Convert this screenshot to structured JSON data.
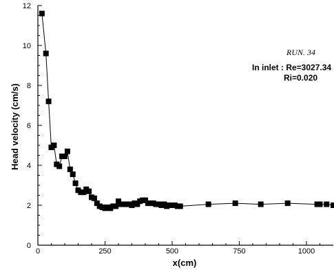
{
  "chart_data": {
    "type": "scatter",
    "xlabel": "x(cm)",
    "ylabel": "Head velocity  (cm/s)",
    "xlim": [
      0,
      1100
    ],
    "ylim": [
      0,
      12
    ],
    "xticks": [
      0,
      250,
      500,
      750,
      1000
    ],
    "yticks": [
      0,
      2,
      4,
      6,
      8,
      10,
      12
    ],
    "x_tick_labels": [
      "0",
      "250",
      "500",
      "750",
      "1000"
    ],
    "y_tick_labels": [
      "0",
      "2",
      "4",
      "6",
      "8",
      "10",
      "12"
    ],
    "grid": false,
    "annotations": {
      "run": "RUN. 34",
      "inlet": "In inlet : Re=3027.34",
      "ri": "Ri=0.020"
    },
    "series": [
      {
        "marker": "square",
        "line": true,
        "points": [
          [
            15,
            11.6
          ],
          [
            30,
            9.6
          ],
          [
            40,
            7.2
          ],
          [
            50,
            4.9
          ],
          [
            60,
            5.0
          ],
          [
            70,
            4.05
          ],
          [
            80,
            3.95
          ],
          [
            90,
            4.45
          ],
          [
            100,
            4.45
          ],
          [
            110,
            4.7
          ],
          [
            120,
            3.8
          ],
          [
            130,
            3.55
          ],
          [
            140,
            3.1
          ],
          [
            150,
            2.75
          ],
          [
            160,
            2.65
          ],
          [
            170,
            2.65
          ],
          [
            180,
            2.8
          ],
          [
            190,
            2.7
          ],
          [
            200,
            2.4
          ],
          [
            210,
            2.35
          ],
          [
            220,
            2.1
          ],
          [
            230,
            1.95
          ],
          [
            240,
            1.9
          ],
          [
            250,
            1.85
          ],
          [
            260,
            1.9
          ],
          [
            270,
            1.85
          ],
          [
            280,
            1.95
          ],
          [
            290,
            1.95
          ],
          [
            300,
            2.2
          ],
          [
            310,
            2.05
          ],
          [
            320,
            2.05
          ],
          [
            330,
            2.05
          ],
          [
            340,
            2.05
          ],
          [
            350,
            2.0
          ],
          [
            360,
            2.1
          ],
          [
            370,
            2.05
          ],
          [
            380,
            2.2
          ],
          [
            390,
            2.25
          ],
          [
            400,
            2.25
          ],
          [
            410,
            2.1
          ],
          [
            420,
            2.1
          ],
          [
            430,
            2.1
          ],
          [
            440,
            2.05
          ],
          [
            450,
            2.05
          ],
          [
            460,
            2.0
          ],
          [
            470,
            2.05
          ],
          [
            480,
            1.95
          ],
          [
            490,
            2.0
          ],
          [
            500,
            2.0
          ],
          [
            510,
            2.0
          ],
          [
            520,
            1.95
          ],
          [
            530,
            1.95
          ],
          [
            635,
            2.05
          ],
          [
            735,
            2.1
          ],
          [
            830,
            2.05
          ],
          [
            930,
            2.1
          ],
          [
            1040,
            2.05
          ],
          [
            1050,
            2.05
          ],
          [
            1075,
            2.05
          ],
          [
            1100,
            2.0
          ]
        ]
      }
    ]
  }
}
